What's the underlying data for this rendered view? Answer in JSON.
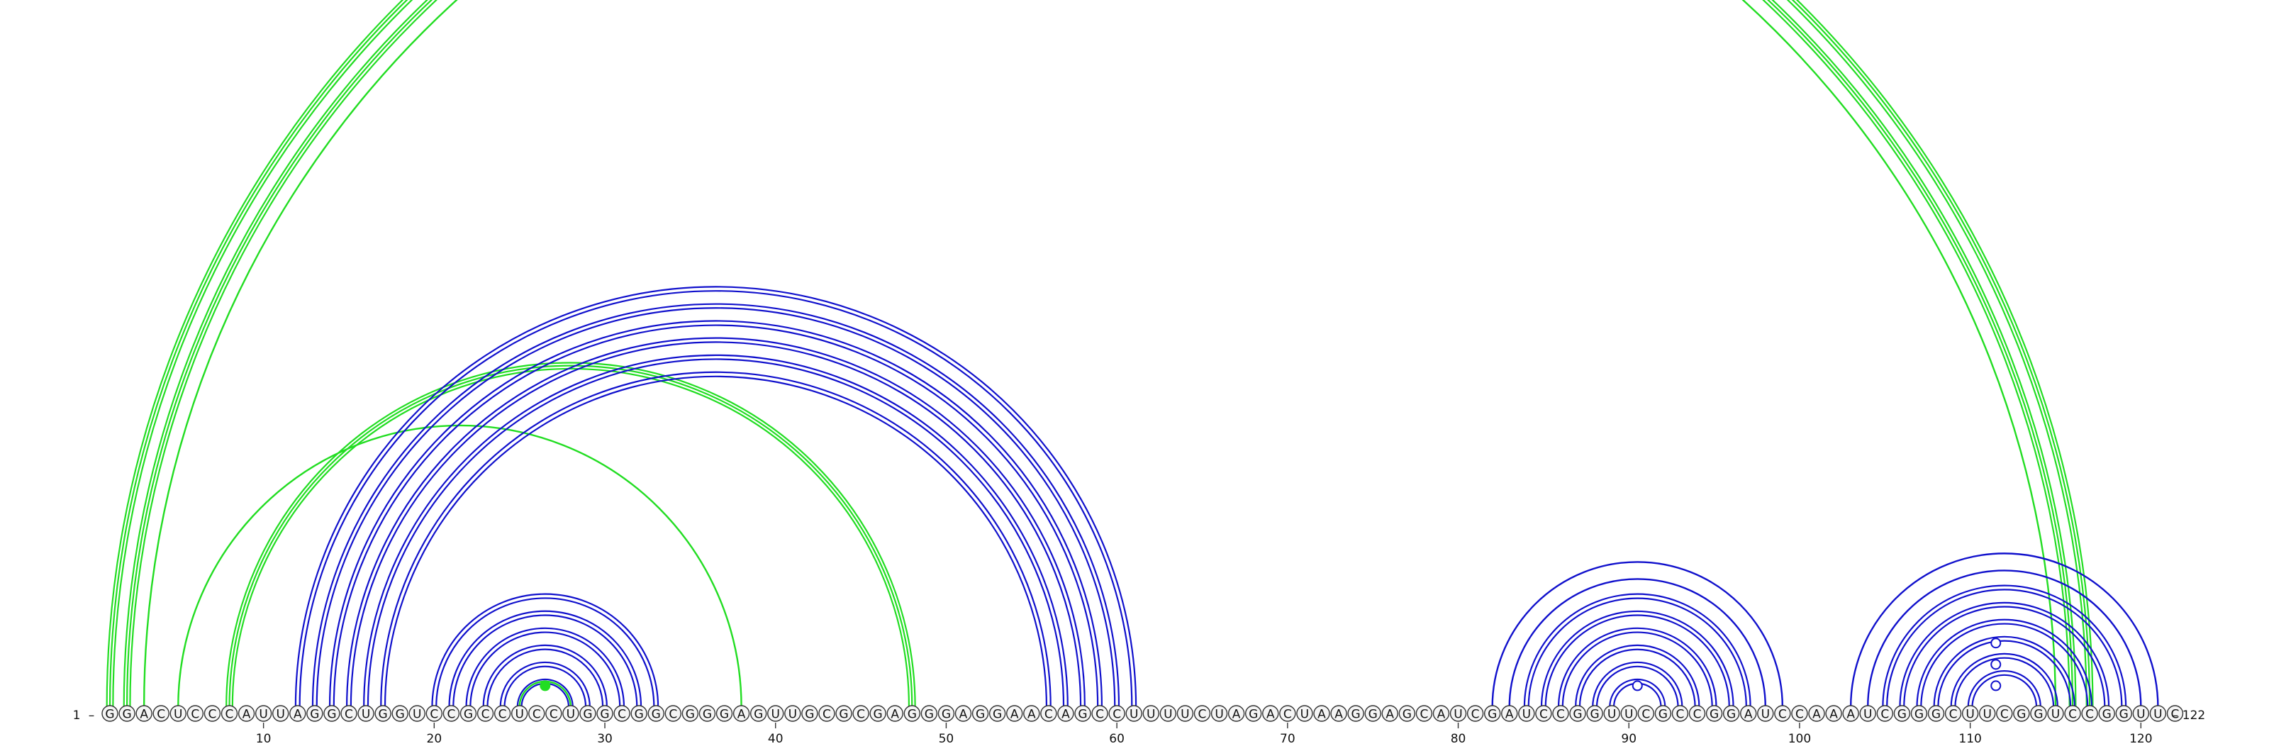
{
  "diagram": {
    "sequence": "GGACUCCCAUUAGGCUGGUCCGCCUCCUGGCGGCGGGAGUUGCGCGAGGGAGGAACAGCCUUUUCUAGACUAAGGAGCAUCGAUCCGGUUCGCCGGAUCCAAAUCGGGCUUCGGUCCGGUUC",
    "start_label": "1",
    "end_label": "122",
    "tick_labels": [
      "10",
      "20",
      "30",
      "40",
      "50",
      "60",
      "70",
      "80",
      "90",
      "100",
      "110",
      "120"
    ],
    "colors": {
      "stem": "#1010cc",
      "pseudoknot": "#22dd22",
      "nucleotide_stroke": "#333333",
      "nucleotide_fill": "#f5f5f5",
      "text": "#111111"
    },
    "stem_arcs": [
      [
        12,
        61,
        "double"
      ],
      [
        13,
        60,
        "double"
      ],
      [
        14,
        59,
        "double"
      ],
      [
        15,
        58,
        "double"
      ],
      [
        16,
        57,
        "double"
      ],
      [
        17,
        56,
        "double"
      ],
      [
        20,
        33,
        "double"
      ],
      [
        21,
        32,
        "double"
      ],
      [
        22,
        31,
        "double"
      ],
      [
        23,
        30,
        "double"
      ],
      [
        24,
        29,
        "double"
      ],
      [
        25,
        28,
        "double"
      ],
      [
        82,
        99,
        "single"
      ],
      [
        83,
        98,
        "single"
      ],
      [
        84,
        97,
        "double"
      ],
      [
        85,
        96,
        "double"
      ],
      [
        86,
        95,
        "double"
      ],
      [
        87,
        94,
        "double"
      ],
      [
        88,
        93,
        "double"
      ],
      [
        89,
        92,
        "double"
      ],
      [
        103,
        121,
        "single"
      ],
      [
        104,
        120,
        "single"
      ],
      [
        105,
        119,
        "double"
      ],
      [
        106,
        118,
        "double"
      ],
      [
        107,
        117,
        "double"
      ],
      [
        108,
        116,
        "double"
      ],
      [
        109,
        115,
        "double"
      ],
      [
        110,
        114,
        "double"
      ]
    ],
    "pseudoknot_arcs": [
      [
        1,
        117,
        "triple"
      ],
      [
        2,
        116,
        "triple"
      ],
      [
        3,
        115,
        "single"
      ],
      [
        8,
        48,
        "triple"
      ],
      [
        5,
        38,
        "single"
      ],
      [
        25,
        28,
        "single"
      ]
    ],
    "markers": [
      {
        "pos": 26.5,
        "level": 1,
        "type": "dot"
      },
      {
        "pos": 90.5,
        "level": 1,
        "type": "circle"
      },
      {
        "pos": 111.5,
        "level": 1,
        "type": "circle"
      },
      {
        "pos": 111.5,
        "level": 3,
        "type": "circle"
      },
      {
        "pos": 111.5,
        "level": 5,
        "type": "circle"
      }
    ]
  }
}
